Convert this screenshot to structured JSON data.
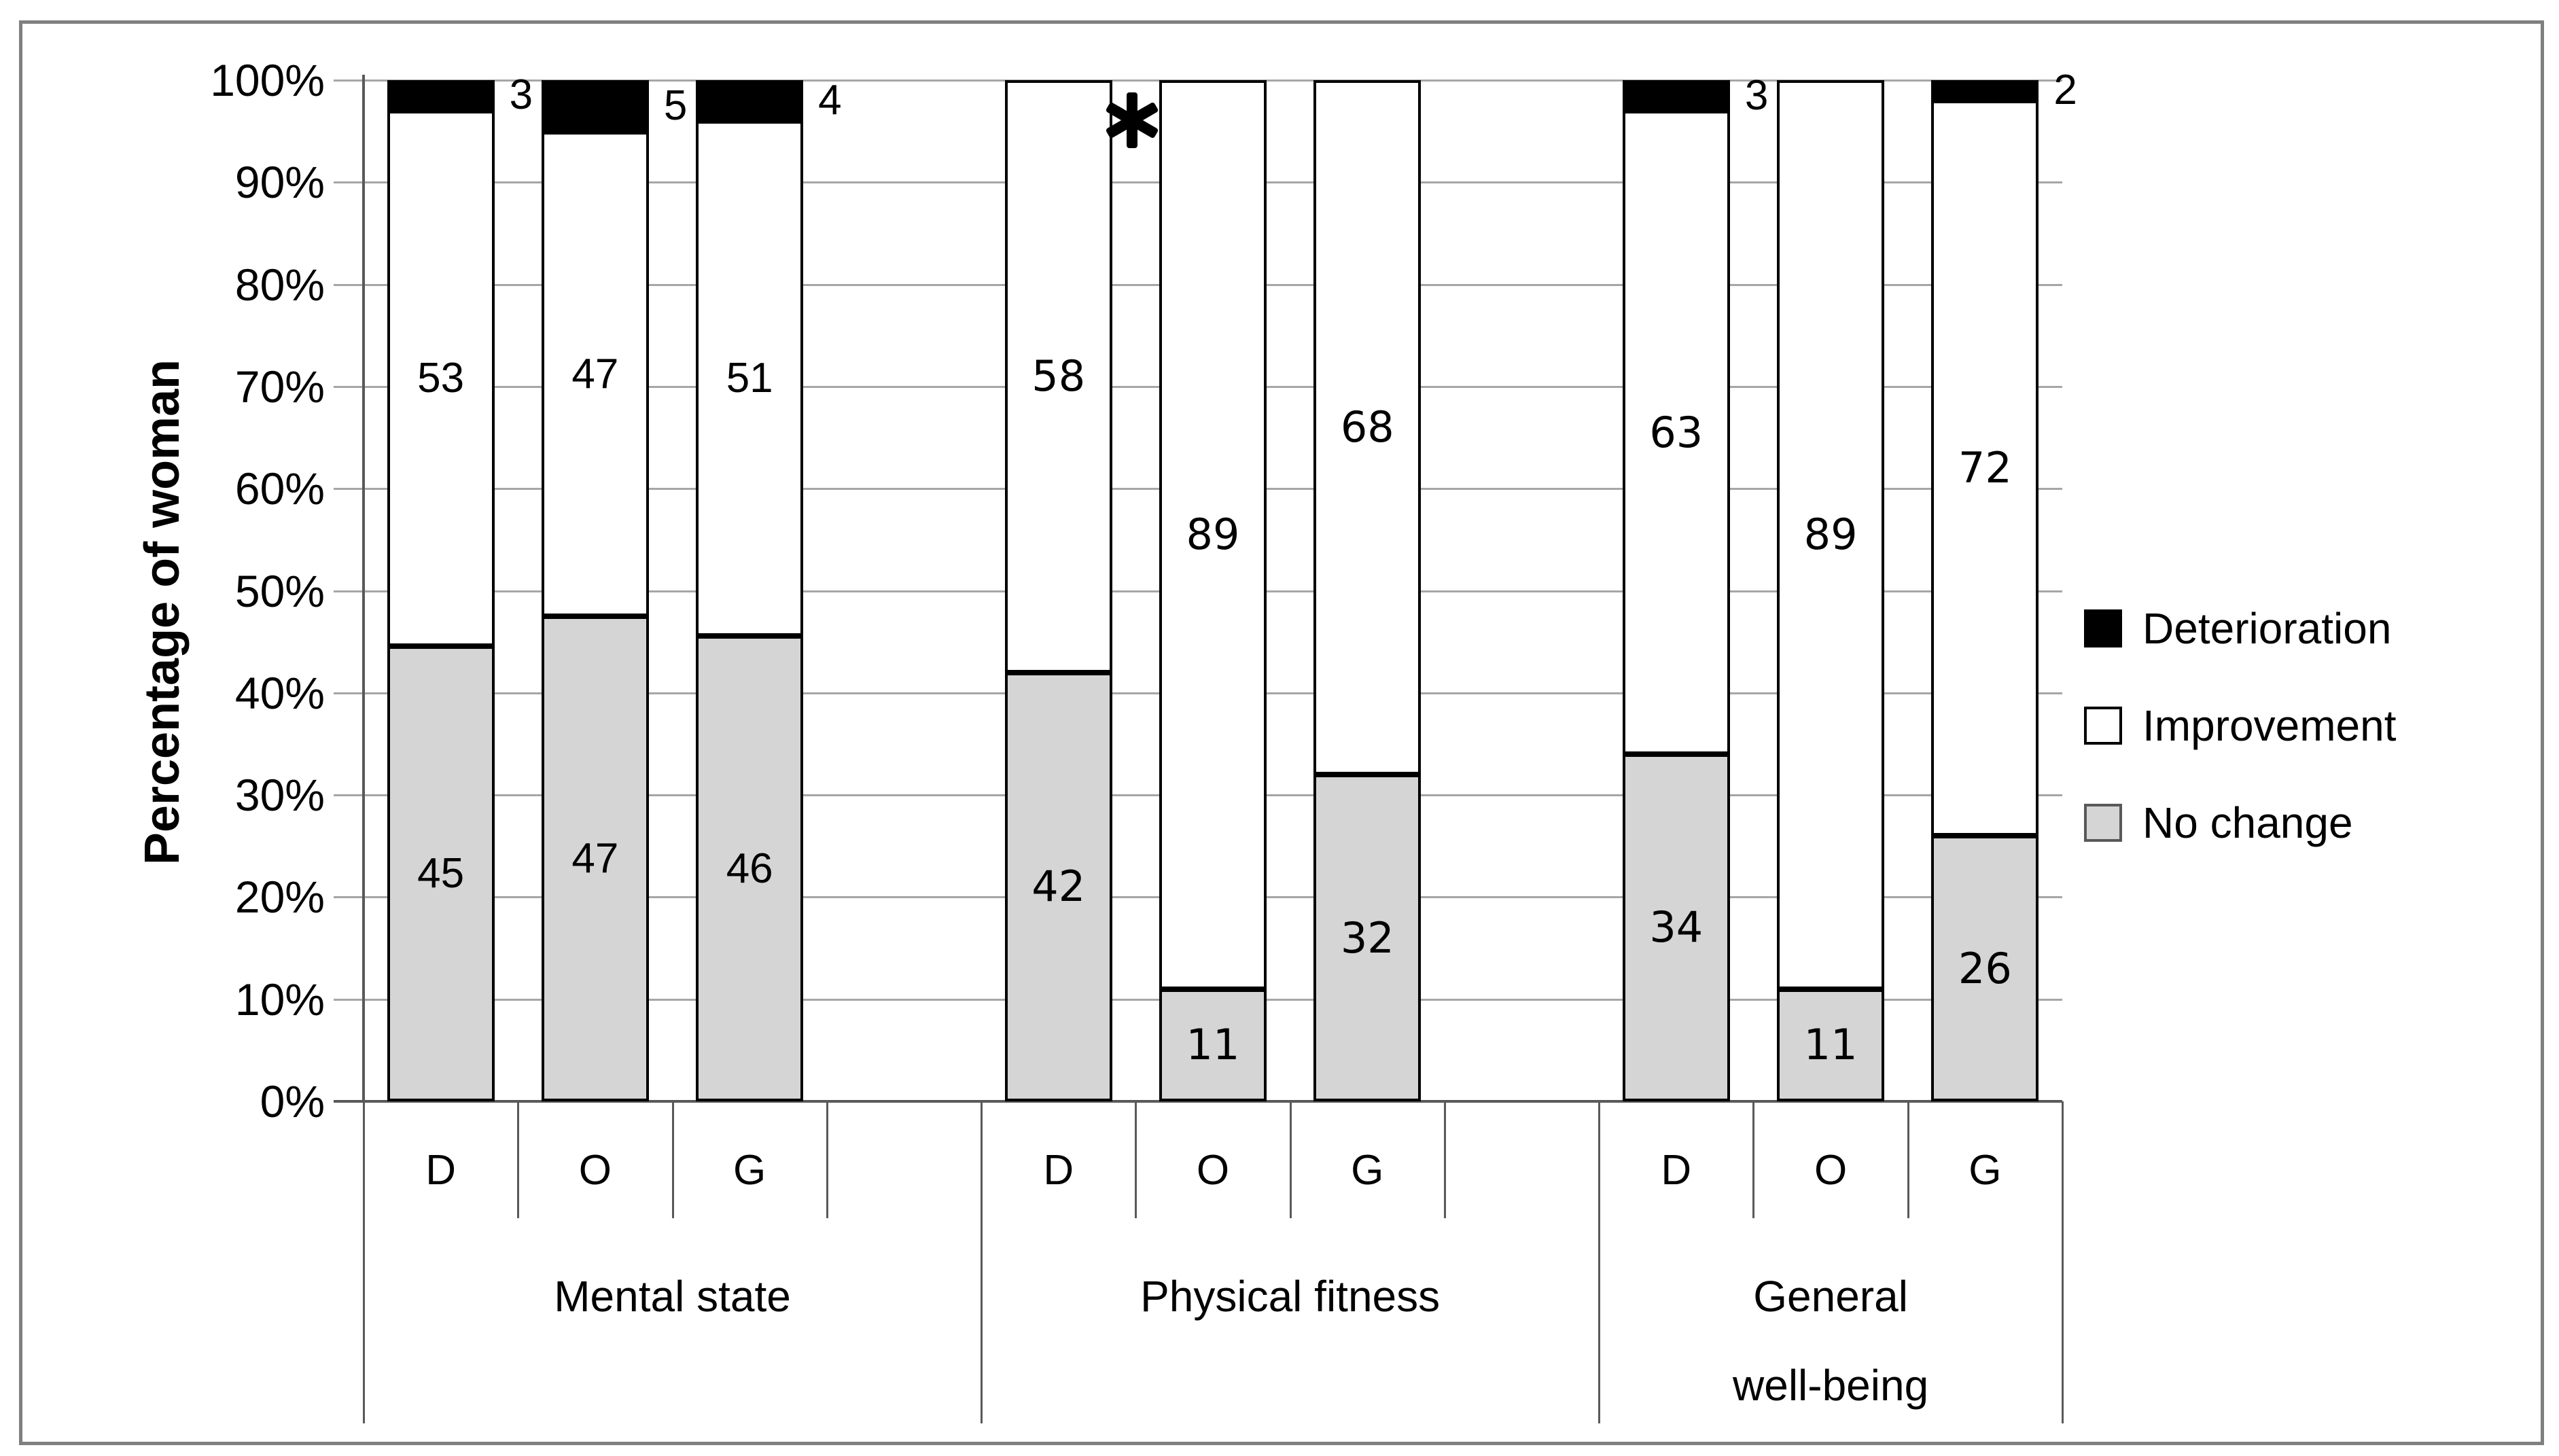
{
  "figure": {
    "background": "#ffffff",
    "border_color": "#7f7f7f"
  },
  "chart_data": {
    "type": "bar",
    "subtype": "stacked-100-percent",
    "title": "",
    "xlabel": "",
    "ylabel": "Percentage of woman",
    "ylim": [
      0,
      100
    ],
    "ytick_step": 10,
    "ytick_labels": [
      "0%",
      "10%",
      "20%",
      "30%",
      "40%",
      "50%",
      "60%",
      "70%",
      "80%",
      "90%",
      "100%"
    ],
    "grid": "horizontal",
    "legend_position": "right",
    "series_order_bottom_to_top": [
      "No change",
      "Improvement",
      "Deterioration"
    ],
    "categories_per_group": [
      "D",
      "O",
      "G"
    ],
    "groups": [
      {
        "label": "Mental state",
        "label_lines": [
          "Mental state"
        ],
        "bars": [
          {
            "category": "D",
            "no_change": 45,
            "improvement": 53,
            "deterioration": 3,
            "annotation": ""
          },
          {
            "category": "O",
            "no_change": 47,
            "improvement": 47,
            "deterioration": 5,
            "annotation": ""
          },
          {
            "category": "G",
            "no_change": 46,
            "improvement": 51,
            "deterioration": 4,
            "annotation": ""
          }
        ]
      },
      {
        "label": "Physical fitness",
        "label_lines": [
          "Physical fitness"
        ],
        "bars": [
          {
            "category": "D",
            "no_change": 42,
            "improvement": 58,
            "deterioration": 0,
            "annotation": ""
          },
          {
            "category": "O",
            "no_change": 11,
            "improvement": 89,
            "deterioration": 0,
            "annotation": "*"
          },
          {
            "category": "G",
            "no_change": 32,
            "improvement": 68,
            "deterioration": 0,
            "annotation": ""
          }
        ]
      },
      {
        "label": "General well-being",
        "label_lines": [
          "General",
          "well-being"
        ],
        "bars": [
          {
            "category": "D",
            "no_change": 34,
            "improvement": 63,
            "deterioration": 3,
            "annotation": ""
          },
          {
            "category": "O",
            "no_change": 11,
            "improvement": 89,
            "deterioration": 0,
            "annotation": ""
          },
          {
            "category": "G",
            "no_change": 26,
            "improvement": 72,
            "deterioration": 2,
            "annotation": ""
          }
        ]
      }
    ],
    "legend": [
      {
        "label": "Deterioration",
        "fill": "#000000",
        "border": "#000000"
      },
      {
        "label": "Improvement",
        "fill": "#ffffff",
        "border": "#000000"
      },
      {
        "label": "No change",
        "fill": "#d5d5d5",
        "border": "#595959"
      }
    ],
    "colors": {
      "no_change": "#d5d5d5",
      "improvement": "#ffffff",
      "deterioration": "#000000",
      "bar_border": "#000000",
      "gridline": "#a6a6a6",
      "axis": "#595959",
      "text": "#000000"
    }
  }
}
